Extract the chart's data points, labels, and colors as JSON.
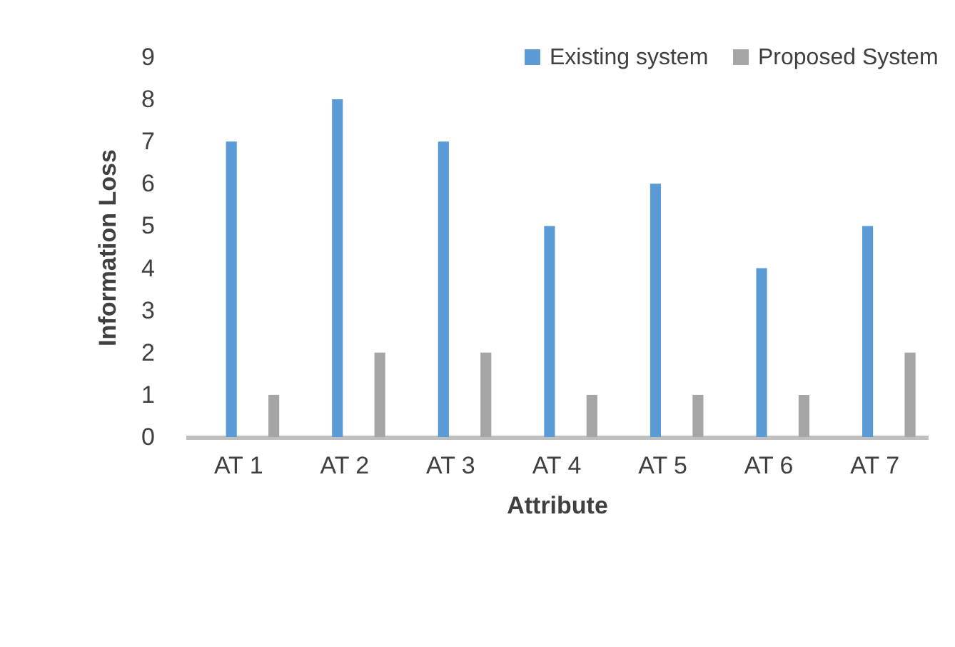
{
  "chart_data": {
    "type": "bar",
    "xlabel": "Attribute",
    "ylabel": "Information Loss",
    "categories": [
      "AT 1",
      "AT 2",
      "AT 3",
      "AT 4",
      "AT 5",
      "AT 6",
      "AT 7"
    ],
    "series": [
      {
        "name": "Existing system",
        "color": "#5b9bd5",
        "values": [
          7,
          8,
          7,
          5,
          6,
          4,
          5
        ]
      },
      {
        "name": "Proposed System",
        "color": "#a5a5a5",
        "values": [
          1,
          2,
          2,
          1,
          1,
          1,
          2
        ]
      }
    ],
    "ylim": [
      0,
      9
    ],
    "yticks": [
      0,
      1,
      2,
      3,
      4,
      5,
      6,
      7,
      8,
      9
    ],
    "grid": false,
    "legend": "top right"
  }
}
